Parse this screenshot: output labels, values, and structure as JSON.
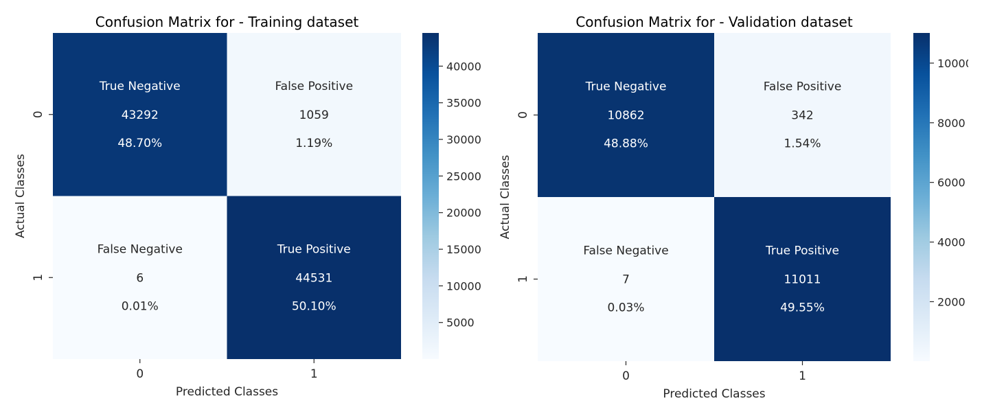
{
  "chart_data": [
    {
      "type": "heatmap",
      "title": "Confusion Matrix for - Training dataset",
      "xlabel": "Predicted Classes",
      "ylabel": "Actual Classes",
      "x_categories": [
        "0",
        "1"
      ],
      "y_categories": [
        "0",
        "1"
      ],
      "cells": [
        {
          "row": 0,
          "col": 0,
          "name": "True Negative",
          "count": "43292",
          "percent": "48.70%",
          "value": 43292
        },
        {
          "row": 0,
          "col": 1,
          "name": "False Positive",
          "count": "1059",
          "percent": "1.19%",
          "value": 1059
        },
        {
          "row": 1,
          "col": 0,
          "name": "False Negative",
          "count": "6",
          "percent": "0.01%",
          "value": 6
        },
        {
          "row": 1,
          "col": 1,
          "name": "True Positive",
          "count": "44531",
          "percent": "50.10%",
          "value": 44531
        }
      ],
      "colorbar": {
        "vmin": 6,
        "vmax": 44531,
        "ticks": [
          "5000",
          "10000",
          "15000",
          "20000",
          "25000",
          "30000",
          "35000",
          "40000"
        ],
        "tick_values": [
          5000,
          10000,
          15000,
          20000,
          25000,
          30000,
          35000,
          40000
        ]
      },
      "colormap": "Blues"
    },
    {
      "type": "heatmap",
      "title": "Confusion Matrix for - Validation dataset",
      "xlabel": "Predicted Classes",
      "ylabel": "Actual Classes",
      "x_categories": [
        "0",
        "1"
      ],
      "y_categories": [
        "0",
        "1"
      ],
      "cells": [
        {
          "row": 0,
          "col": 0,
          "name": "True Negative",
          "count": "10862",
          "percent": "48.88%",
          "value": 10862
        },
        {
          "row": 0,
          "col": 1,
          "name": "False Positive",
          "count": "342",
          "percent": "1.54%",
          "value": 342
        },
        {
          "row": 1,
          "col": 0,
          "name": "False Negative",
          "count": "7",
          "percent": "0.03%",
          "value": 7
        },
        {
          "row": 1,
          "col": 1,
          "name": "True Positive",
          "count": "11011",
          "percent": "49.55%",
          "value": 11011
        }
      ],
      "colorbar": {
        "vmin": 7,
        "vmax": 11011,
        "ticks": [
          "2000",
          "4000",
          "6000",
          "8000",
          "10000"
        ],
        "tick_values": [
          2000,
          4000,
          6000,
          8000,
          10000
        ]
      },
      "colormap": "Blues"
    }
  ]
}
